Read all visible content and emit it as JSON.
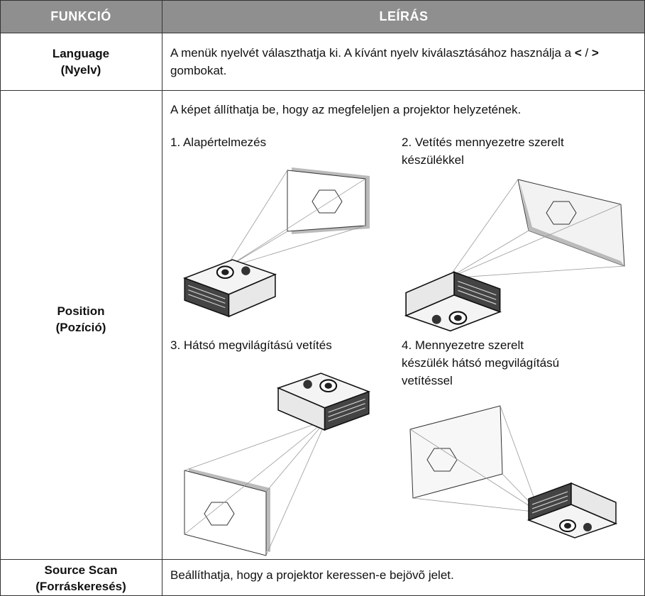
{
  "table": {
    "header": [
      "FUNKCIÓ",
      "LEÍRÁS"
    ],
    "rows": [
      {
        "function": [
          "Language",
          "(Nyelv)"
        ],
        "description": [
          "A menük nyelvét választhatja ki. A kívánt nyelv kiválasztásához használja a ",
          "<",
          " / ",
          ">",
          " gombokat."
        ]
      },
      {
        "function": [
          "Position",
          "(Pozíció)"
        ],
        "intro": "A képet állíthatja be, hogy az megfeleljen a projektor helyzetének.",
        "options": [
          [
            "1. Alapértelmezés"
          ],
          [
            "2. Vetítés mennyezetre szerelt",
            "készülékkel"
          ],
          [
            "3. Hátsó megvilágítású vetítés"
          ],
          [
            "4. Mennyezetre szerelt",
            "készülék hátsó megvilágítású",
            "vetítéssel"
          ]
        ]
      },
      {
        "function": [
          "Source Scan",
          "(Forráskeresés)"
        ],
        "description": [
          "Beállíthatja, hogy a projektor keressen-e bejövõ jelet."
        ]
      }
    ]
  }
}
